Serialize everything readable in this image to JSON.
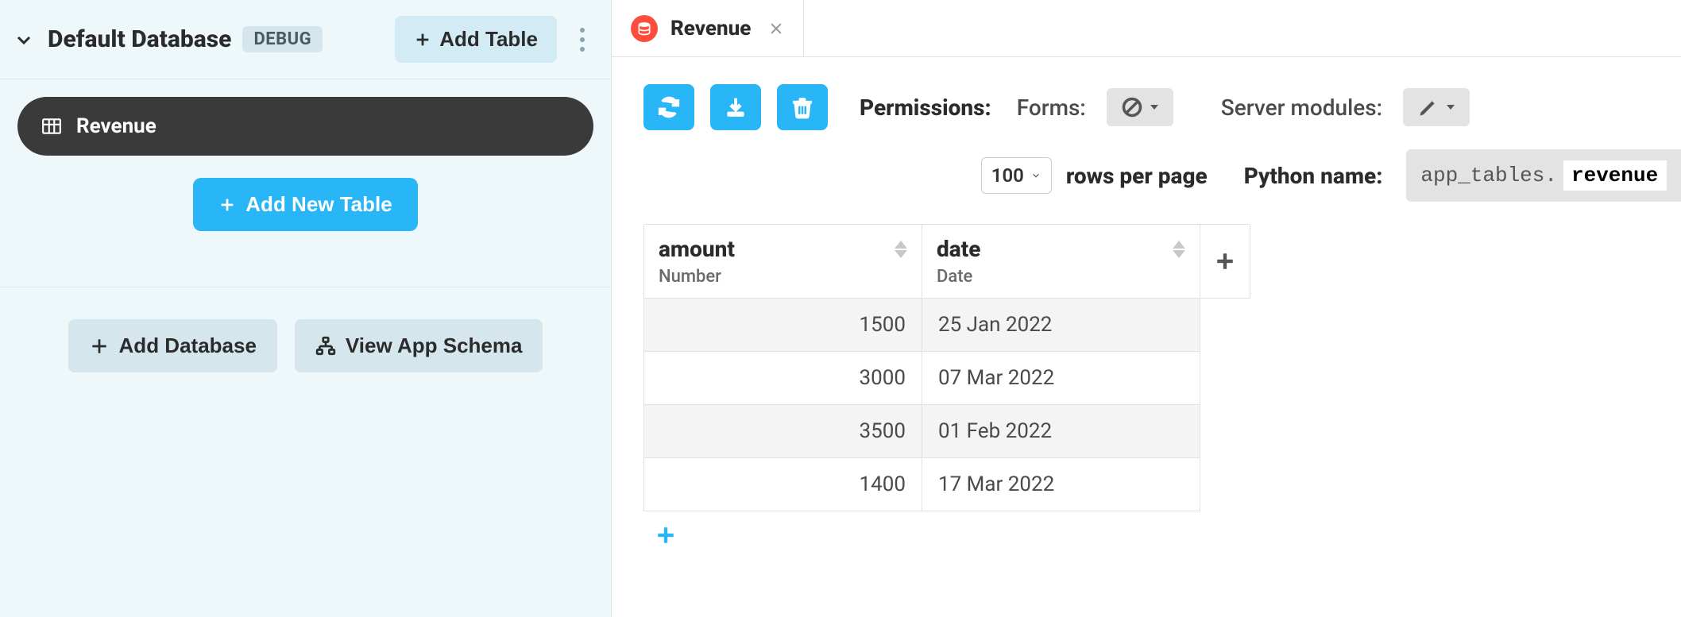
{
  "sidebar": {
    "title": "Default Database",
    "debug_badge": "DEBUG",
    "add_table_top": "Add Table",
    "table_item": "Revenue",
    "add_new_table": "Add New Table",
    "add_database": "Add Database",
    "view_schema": "View App Schema"
  },
  "tab": {
    "label": "Revenue"
  },
  "permissions": {
    "label": "Permissions:",
    "forms_label": "Forms:",
    "server_label": "Server modules:"
  },
  "paging": {
    "rows_per_page": "100",
    "rows_label": "rows per page"
  },
  "pyname": {
    "label": "Python name:",
    "prefix": "app_tables.",
    "value": "revenue"
  },
  "table": {
    "columns": [
      {
        "name": "amount",
        "type": "Number",
        "align": "right"
      },
      {
        "name": "date",
        "type": "Date",
        "align": "left"
      }
    ],
    "rows": [
      {
        "amount": "1500",
        "date": "25 Jan 2022"
      },
      {
        "amount": "3000",
        "date": "07 Mar 2022"
      },
      {
        "amount": "3500",
        "date": "01 Feb 2022"
      },
      {
        "amount": "1400",
        "date": "17 Mar 2022"
      }
    ]
  },
  "colors": {
    "accent": "#29b6f6",
    "sidebar_bg": "#eef8fb",
    "soft_btn": "#d5e6ec",
    "tab_icon": "#ff4d3d",
    "row_odd": "#f4f4f4"
  }
}
